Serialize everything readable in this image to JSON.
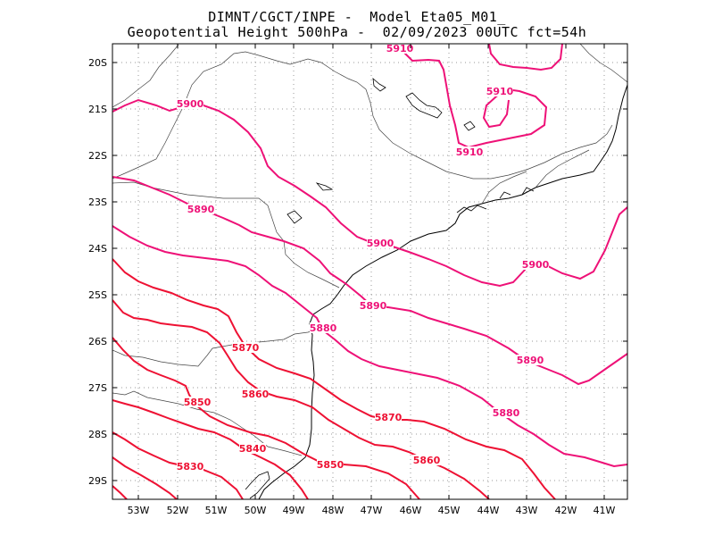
{
  "title": {
    "line1": "DIMNT/CGCT/INPE -  Model Eta05_M01_",
    "line2": "Geopotential Height 500hPa -  02/09/2023 00UTC fct=54h"
  },
  "axes": {
    "x_ticks": [
      "53W",
      "52W",
      "51W",
      "50W",
      "49W",
      "48W",
      "47W",
      "46W",
      "45W",
      "44W",
      "43W",
      "42W",
      "41W"
    ],
    "y_ticks": [
      "20S",
      "21S",
      "22S",
      "23S",
      "24S",
      "25S",
      "26S",
      "27S",
      "28S",
      "29S"
    ]
  },
  "colors": {
    "contour_high": "#ee1177",
    "contour_low": "#ee1133",
    "coast": "#000000",
    "border": "#555555",
    "grid": "#999999"
  },
  "contours": [
    {
      "value": 5910,
      "label": "5910"
    },
    {
      "value": 5900,
      "label": "5900"
    },
    {
      "value": 5890,
      "label": "5890"
    },
    {
      "value": 5880,
      "label": "5880"
    },
    {
      "value": 5870,
      "label": "5870"
    },
    {
      "value": 5860,
      "label": "5860"
    },
    {
      "value": 5850,
      "label": "5850"
    },
    {
      "value": 5840,
      "label": "5840"
    },
    {
      "value": 5830,
      "label": "5830"
    }
  ]
}
